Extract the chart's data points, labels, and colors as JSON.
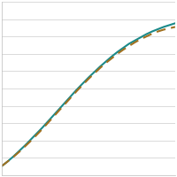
{
  "title": "",
  "background_color": "#ffffff",
  "grid_color": "#cccccc",
  "line1": {
    "color": "#1a8a8a",
    "style": "-",
    "linewidth": 1.5,
    "x": [
      0,
      1,
      2,
      3,
      4,
      5,
      6,
      7,
      8,
      9,
      10,
      11,
      12,
      13,
      14,
      15,
      16,
      17,
      18,
      19,
      20,
      21,
      22,
      23,
      24,
      25,
      26,
      27,
      28,
      29,
      30
    ],
    "y": [
      2.0,
      3.0,
      4.1,
      5.3,
      6.5,
      7.8,
      9.1,
      10.4,
      11.8,
      13.2,
      14.6,
      16.0,
      17.4,
      18.8,
      20.1,
      21.4,
      22.6,
      23.8,
      24.9,
      26.0,
      27.0,
      27.9,
      28.8,
      29.5,
      30.2,
      30.9,
      31.5,
      32.0,
      32.5,
      32.9,
      33.3
    ]
  },
  "line2": {
    "color": "#a07020",
    "style": "--",
    "linewidth": 1.5,
    "x": [
      0,
      1,
      2,
      3,
      4,
      5,
      6,
      7,
      8,
      9,
      10,
      11,
      12,
      13,
      14,
      15,
      16,
      17,
      18,
      19,
      20,
      21,
      22,
      23,
      24,
      25,
      26,
      27,
      28,
      29,
      30
    ],
    "y": [
      2.0,
      3.0,
      4.0,
      5.1,
      6.3,
      7.5,
      8.8,
      10.1,
      11.5,
      12.9,
      14.3,
      15.7,
      17.1,
      18.5,
      19.8,
      21.1,
      22.3,
      23.5,
      24.6,
      25.6,
      26.6,
      27.5,
      28.3,
      29.1,
      29.8,
      30.4,
      31.0,
      31.5,
      31.9,
      32.2,
      32.5
    ]
  },
  "xlim": [
    0,
    30
  ],
  "ylim": [
    0,
    38
  ],
  "ytick_count": 10,
  "border_color": "#bbbbbb",
  "dash_pattern": [
    5,
    3
  ]
}
